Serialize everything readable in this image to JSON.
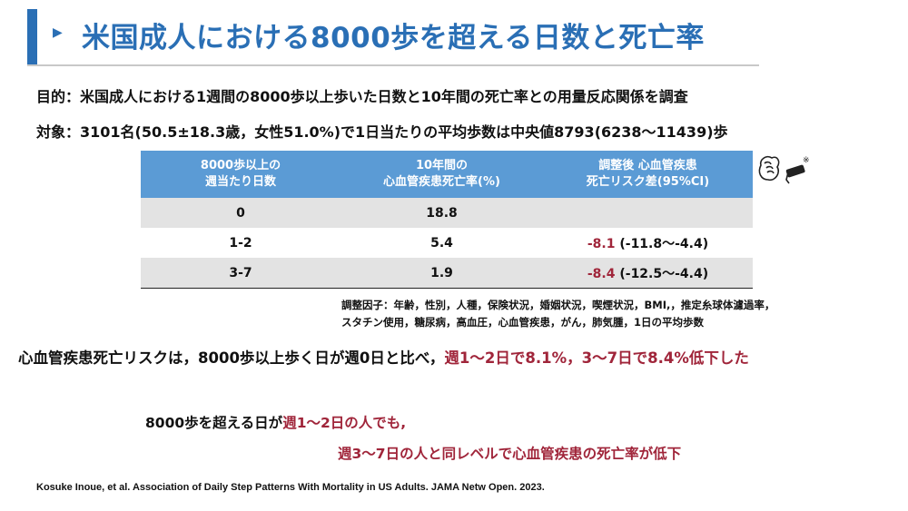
{
  "header": {
    "title": "米国成人における8000歩を超える日数と死亡率",
    "arrow_icon": "triangle-right-icon",
    "accent_color": "#2a6fb5"
  },
  "purpose": "目的：米国成人における1週間の8000歩以上歩いた日数と10年間の死亡率との用量反応関係を調査",
  "subjects": "対象：3101名(50.5±18.3歳，女性51.0%)で1日当たりの平均歩数は中央値8793(6238～11439)歩",
  "table": {
    "header_color": "#5b9bd5",
    "columns": [
      "8000歩以上の\n週当たり日数",
      "10年間の\n心血管疾患死亡率(%)",
      "調整後 心血管疾患\n死亡リスク差(95%CI)"
    ],
    "rows": [
      {
        "days": "0",
        "mortality": "18.8",
        "diff_point": "",
        "diff_ci": ""
      },
      {
        "days": "1-2",
        "mortality": "5.4",
        "diff_point": "-8.1",
        "diff_ci": " (-11.8～-4.4)"
      },
      {
        "days": "3-7",
        "mortality": "1.9",
        "diff_point": "-8.4",
        "diff_ci": " (-12.5～-4.4)"
      }
    ]
  },
  "icons": [
    "fist-icon",
    "heart-syringe-icon"
  ],
  "footnote": {
    "line1": "調整因子：年齢，性別，人種，保険状況，婚姻状況，喫煙状況，BMI,，推定糸球体濾過率，",
    "line2": "スタチン使用，糖尿病，高血圧，心血管疾患，がん，肺気腫，1日の平均歩数"
  },
  "conclusion": {
    "black": "心血管疾患死亡リスクは，8000歩以上歩く日が週0日と比べ，",
    "red": "週1～2日で8.1%，3～7日で8.4%低下した"
  },
  "point1": {
    "black": "8000歩を超える日が",
    "red": "週1～2日の人でも,"
  },
  "point2": "週3～7日の人と同レベルで心血管疾患の死亡率が低下",
  "citation": "Kosuke Inoue, et al. Association of Daily Step Patterns With Mortality in US Adults. JAMA Netw Open. 2023.",
  "emphasis_color": "#a0253a"
}
